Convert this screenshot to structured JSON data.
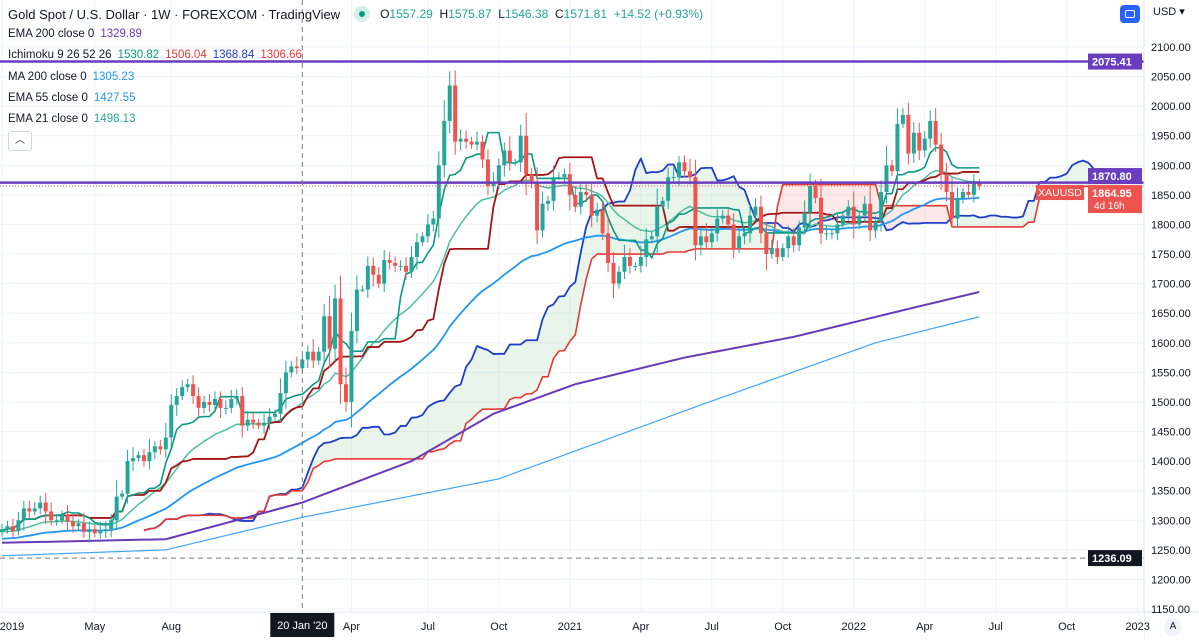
{
  "header": {
    "title": "Gold Spot / U.S. Dollar · 1W · FOREXCOM · TradingView",
    "o_label": "O",
    "o": "1557.29",
    "h_label": "H",
    "h": "1575.87",
    "l_label": "L",
    "l": "1546.38",
    "c_label": "C",
    "c": "1571.81",
    "change": "+14.52 (+0.93%)"
  },
  "legend": {
    "ema200": {
      "label": "EMA 200 close 0",
      "value": "1329.89"
    },
    "ichimoku": {
      "label": "Ichimoku 9 26 52 26",
      "conversion": "1530.82",
      "base": "1506.04",
      "lead1": "1368.84",
      "lead2": "1306.66"
    },
    "ma200": {
      "label": "MA 200 close 0",
      "value": "1305.23"
    },
    "ema55": {
      "label": "EMA 55 close 0",
      "value": "1427.55"
    },
    "ema21": {
      "label": "EMA 21 close 0",
      "value": "1498.13"
    },
    "collapse_icon": "chevron-up-icon"
  },
  "toolbar": {
    "currency": "USD ▾",
    "auto": "A",
    "fullscreen_icon": "fullscreen-icon"
  },
  "colors": {
    "up": "#26a69a",
    "down": "#ef5350",
    "ema200": "#673ab7",
    "ma200": "#42a5f5",
    "ema55": "#2196f3",
    "ema21": "#4dbf9f",
    "conversion": "#089981",
    "base": "#a31515",
    "lead1": "#1e3ec8",
    "lead2": "#e53935",
    "hline": "#6a3dbf"
  },
  "chart_data": {
    "type": "candlestick",
    "title": "Gold Spot / U.S. Dollar · 1W · FOREXCOM",
    "symbol": "XAUUSD",
    "countdown": "4d 16h",
    "ylim": [
      1125,
      2125
    ],
    "yticks": [
      2100,
      2050,
      2000,
      1950,
      1900,
      1850,
      1800,
      1750,
      1700,
      1650,
      1600,
      1550,
      1500,
      1450,
      1400,
      1350,
      1300,
      1250,
      1200,
      1150
    ],
    "xticks": [
      {
        "week": 0,
        "label": "2019"
      },
      {
        "week": 17,
        "label": "May"
      },
      {
        "week": 31,
        "label": "Aug"
      },
      {
        "week": 64,
        "label": "Apr"
      },
      {
        "week": 78,
        "label": "Jul"
      },
      {
        "week": 91,
        "label": "Oct"
      },
      {
        "week": 104,
        "label": "2021"
      },
      {
        "week": 117,
        "label": "Apr"
      },
      {
        "week": 130,
        "label": "Jul"
      },
      {
        "week": 143,
        "label": "Oct"
      },
      {
        "week": 156,
        "label": "2022"
      },
      {
        "week": 169,
        "label": "Apr"
      },
      {
        "week": 182,
        "label": "Jul"
      },
      {
        "week": 195,
        "label": "Oct"
      },
      {
        "week": 208,
        "label": "2023"
      }
    ],
    "crosshair": {
      "week": 55,
      "label": "20 Jan '20"
    },
    "hlines": [
      {
        "price": 2075.41,
        "label": "2075.41",
        "kind": "level"
      },
      {
        "price": 1870.8,
        "label": "1870.80",
        "kind": "level"
      },
      {
        "price": 1236.09,
        "label": "1236.09",
        "kind": "crosshair"
      }
    ],
    "last_price": {
      "price": 1864.95,
      "label": "1864.95"
    },
    "closes": [
      1285,
      1290,
      1282,
      1300,
      1320,
      1315,
      1320,
      1330,
      1315,
      1300,
      1300,
      1310,
      1298,
      1290,
      1295,
      1280,
      1285,
      1278,
      1282,
      1285,
      1300,
      1340,
      1345,
      1400,
      1405,
      1410,
      1400,
      1415,
      1425,
      1420,
      1440,
      1495,
      1510,
      1525,
      1530,
      1510,
      1490,
      1500,
      1495,
      1505,
      1490,
      1490,
      1505,
      1510,
      1460,
      1470,
      1465,
      1460,
      1465,
      1475,
      1480,
      1515,
      1550,
      1560,
      1557,
      1571.81,
      1585,
      1570,
      1585,
      1645,
      1590,
      1675,
      1530,
      1500,
      1620,
      1690,
      1690,
      1730,
      1715,
      1700,
      1740,
      1735,
      1730,
      1730,
      1720,
      1745,
      1770,
      1780,
      1800,
      1810,
      1900,
      1975,
      2035,
      1940,
      1945,
      1940,
      1935,
      1940,
      1910,
      1865,
      1870,
      1900,
      1925,
      1905,
      1905,
      1950,
      1885,
      1870,
      1790,
      1835,
      1840,
      1880,
      1880,
      1885,
      1850,
      1830,
      1855,
      1850,
      1815,
      1825,
      1785,
      1735,
      1700,
      1720,
      1745,
      1730,
      1730,
      1745,
      1775,
      1780,
      1830,
      1840,
      1880,
      1880,
      1905,
      1890,
      1880,
      1765,
      1780,
      1770,
      1785,
      1810,
      1815,
      1800,
      1760,
      1780,
      1785,
      1815,
      1830,
      1785,
      1750,
      1760,
      1745,
      1760,
      1780,
      1765,
      1795,
      1820,
      1865,
      1845,
      1785,
      1785,
      1785,
      1800,
      1815,
      1830,
      1800,
      1815,
      1835,
      1790,
      1805,
      1855,
      1900,
      1890,
      1970,
      1985,
      1920,
      1955,
      1925,
      1945,
      1975,
      1935,
      1885,
      1855,
      1810,
      1845,
      1855,
      1850,
      1870,
      1864.95
    ],
    "series": [
      {
        "name": "EMA 200",
        "points": [
          [
            0,
            1262
          ],
          [
            30,
            1268
          ],
          [
            55,
            1330
          ],
          [
            75,
            1400
          ],
          [
            90,
            1480
          ],
          [
            105,
            1530
          ],
          [
            125,
            1575
          ],
          [
            145,
            1610
          ],
          [
            165,
            1655
          ],
          [
            179,
            1686
          ]
        ]
      },
      {
        "name": "MA 200",
        "points": [
          [
            0,
            1240
          ],
          [
            30,
            1250
          ],
          [
            55,
            1305
          ],
          [
            91,
            1370
          ],
          [
            128,
            1495
          ],
          [
            160,
            1600
          ],
          [
            179,
            1644
          ]
        ]
      },
      {
        "name": "EMA 55",
        "seed": 1268
      },
      {
        "name": "EMA 21",
        "seed": 1280
      },
      {
        "name": "Ichimoku",
        "periods": [
          9,
          26,
          52,
          26
        ]
      }
    ]
  }
}
